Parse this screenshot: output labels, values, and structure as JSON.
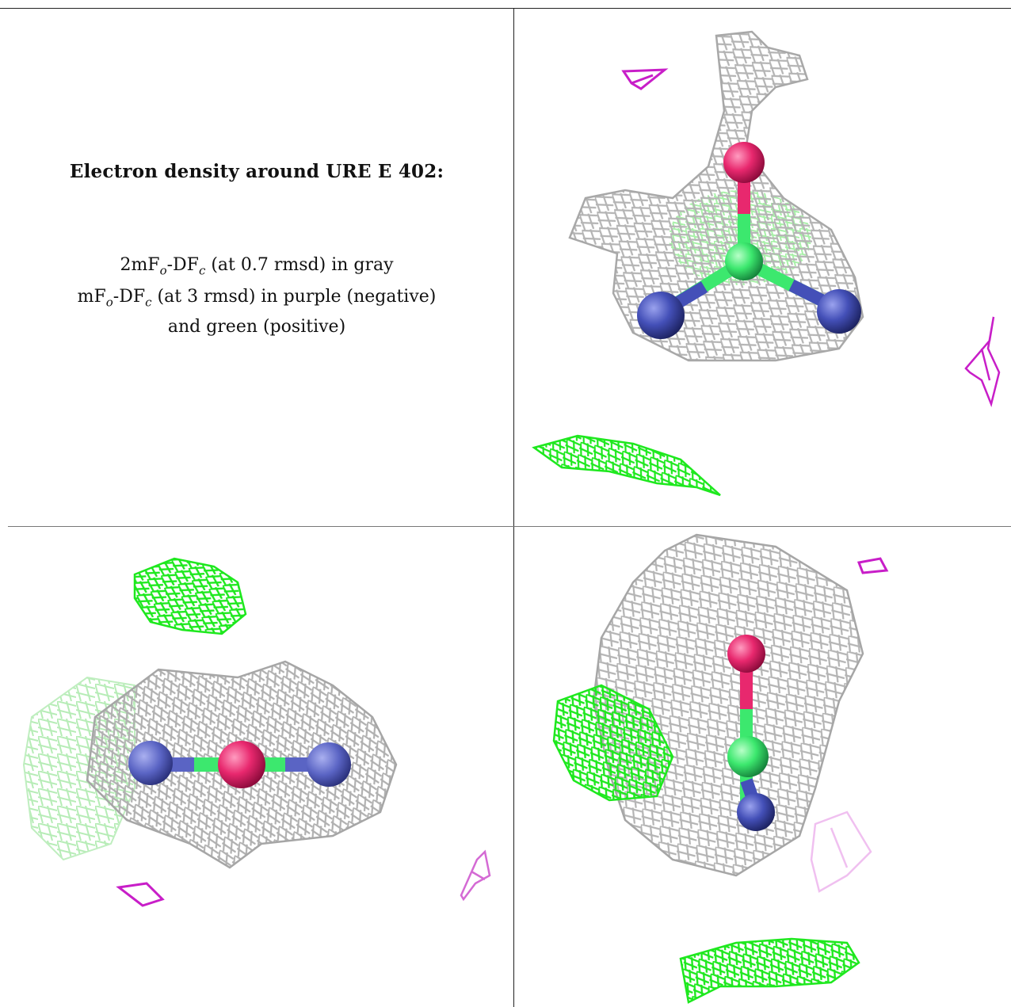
{
  "caption": {
    "title": "Electron density around URE E 402:",
    "line1": {
      "a": "2mF",
      "sub1": "o",
      "b": "-DF",
      "sub2": "c",
      "c": " (at 0.7 rmsd) in gray"
    },
    "line2": {
      "a": "mF",
      "sub1": "o",
      "b": "-DF",
      "sub2": "c",
      "c": " (at 3 rmsd) in purple (negative)"
    },
    "line3": "and green (positive)"
  },
  "colors": {
    "gray_mesh": "#b8b8b8",
    "green_mesh": "#1ee81e",
    "purple_mesh": "#c81ec8",
    "oxygen": "#e8286e",
    "nitrogen": "#4450b8",
    "carbon": "#3ce86e"
  },
  "panels": [
    "view-top-right",
    "view-bottom-left",
    "view-bottom-right"
  ]
}
